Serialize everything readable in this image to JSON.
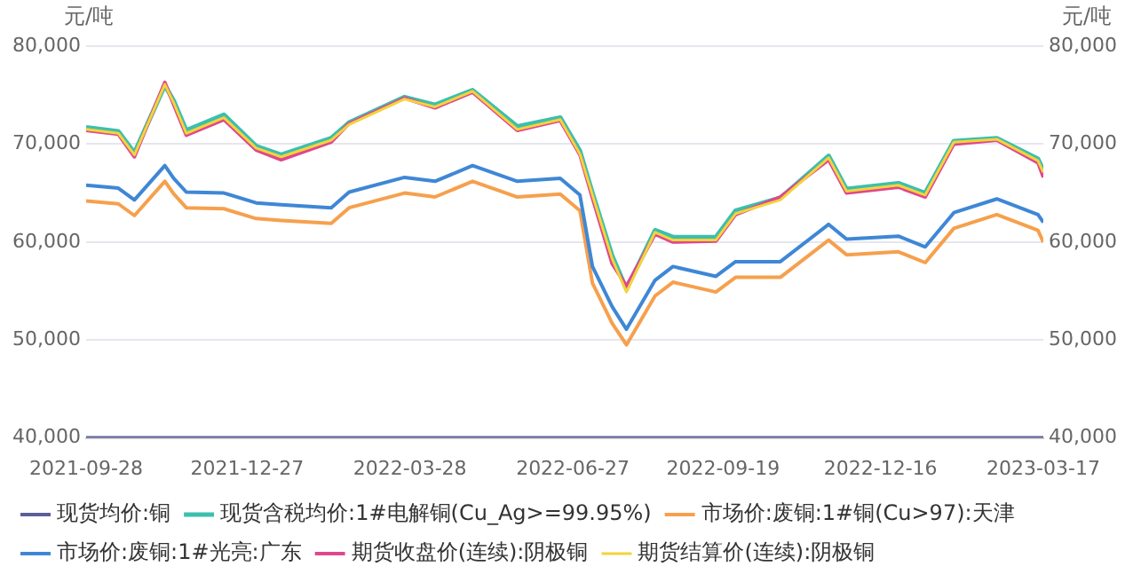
{
  "chart_data": {
    "type": "line",
    "ylabel": "元/吨",
    "y2label": "元/吨",
    "x": [
      "2021-09-28",
      "2021-10-16",
      "2021-10-25",
      "2021-11-11",
      "2021-11-16",
      "2021-11-23",
      "2021-12-14",
      "2022-01-01",
      "2022-01-15",
      "2022-02-12",
      "2022-02-22",
      "2022-03-25",
      "2022-04-11",
      "2022-05-02",
      "2022-05-27",
      "2022-06-20",
      "2022-07-01",
      "2022-07-08",
      "2022-07-19",
      "2022-07-27",
      "2022-08-12",
      "2022-08-22",
      "2022-09-15",
      "2022-09-26",
      "2022-10-21",
      "2022-11-17",
      "2022-11-27",
      "2022-12-26",
      "2023-01-10",
      "2023-01-26",
      "2023-02-19",
      "2023-03-14",
      "2023-03-17"
    ],
    "xlim": [
      "2021-09-28",
      "2023-03-17"
    ],
    "xticks": [
      "2021-09-28",
      "2021-12-27",
      "2022-03-28",
      "2022-06-27",
      "2022-09-19",
      "2022-12-16",
      "2023-03-17"
    ],
    "ylim": [
      40000,
      80000
    ],
    "yticks": [
      {
        "value": 40000,
        "label": "40,000"
      },
      {
        "value": 50000,
        "label": "50,000"
      },
      {
        "value": 60000,
        "label": "60,000"
      },
      {
        "value": 70000,
        "label": "70,000"
      },
      {
        "value": 80000,
        "label": "80,000"
      }
    ],
    "y2lim": [
      40000,
      80000
    ],
    "y2ticks": [
      {
        "value": 40000,
        "label": "40,000"
      },
      {
        "value": 50000,
        "label": "50,000"
      },
      {
        "value": 60000,
        "label": "60,000"
      },
      {
        "value": 70000,
        "label": "70,000"
      },
      {
        "value": 80000,
        "label": "80,000"
      }
    ],
    "grid": "y",
    "legend": "bottom",
    "marker": "none",
    "series": [
      {
        "name": "现货均价:铜",
        "color": "#5b5f97",
        "x": [
          "2021-09-28",
          "2023-03-17"
        ],
        "values": [
          40000,
          40000
        ]
      },
      {
        "name": "现货含税均价:1#电解铜(Cu_Ag>=99.95%)",
        "color": "#3cbfae",
        "values": [
          71700,
          71300,
          69100,
          76000,
          74400,
          71400,
          73000,
          69800,
          68900,
          70600,
          72200,
          74800,
          74000,
          75500,
          71800,
          72700,
          69300,
          65000,
          58600,
          55200,
          61200,
          60500,
          60500,
          63200,
          64500,
          68800,
          65400,
          66000,
          65000,
          70300,
          70600,
          68500,
          67300
        ]
      },
      {
        "name": "市场价:废铜:1#铜(Cu>97):天津",
        "color": "#f6a04d",
        "values": [
          64200,
          63900,
          62700,
          66200,
          64900,
          63500,
          63400,
          62400,
          62200,
          61900,
          63500,
          65000,
          64600,
          66200,
          64600,
          64900,
          63200,
          55800,
          51700,
          49500,
          54500,
          55900,
          54900,
          56400,
          56400,
          60200,
          58700,
          59000,
          57900,
          61400,
          62800,
          61200,
          60000
        ]
      },
      {
        "name": "市场价:废铜:1#光亮:广东",
        "color": "#3f87d6",
        "values": [
          65800,
          65500,
          64300,
          67800,
          66500,
          65100,
          65000,
          64000,
          63800,
          63500,
          65100,
          66600,
          66200,
          67800,
          66200,
          66500,
          64800,
          57500,
          53400,
          51100,
          56100,
          57500,
          56500,
          58000,
          58000,
          61800,
          60300,
          60600,
          59500,
          63000,
          64400,
          62800,
          62000
        ]
      },
      {
        "name": "期货收盘价(连续):阴极铜",
        "color": "#e0478e",
        "values": [
          71400,
          71000,
          68700,
          76300,
          74000,
          70900,
          72500,
          69400,
          68400,
          70200,
          72100,
          74700,
          73700,
          75300,
          71400,
          72400,
          68900,
          64500,
          57800,
          55500,
          60800,
          60000,
          60100,
          62800,
          64600,
          68400,
          65000,
          65600,
          64600,
          70000,
          70400,
          68100,
          66600
        ]
      },
      {
        "name": "期货结算价(连续):阴极铜",
        "color": "#f3d43b",
        "values": [
          71500,
          71100,
          68900,
          76100,
          74200,
          71100,
          72700,
          69600,
          68700,
          70400,
          72000,
          74600,
          73800,
          75400,
          71500,
          72500,
          69000,
          64800,
          58300,
          54900,
          61000,
          60200,
          60200,
          62900,
          64300,
          68600,
          65200,
          65800,
          64800,
          70200,
          70500,
          68300,
          67100
        ]
      }
    ]
  }
}
